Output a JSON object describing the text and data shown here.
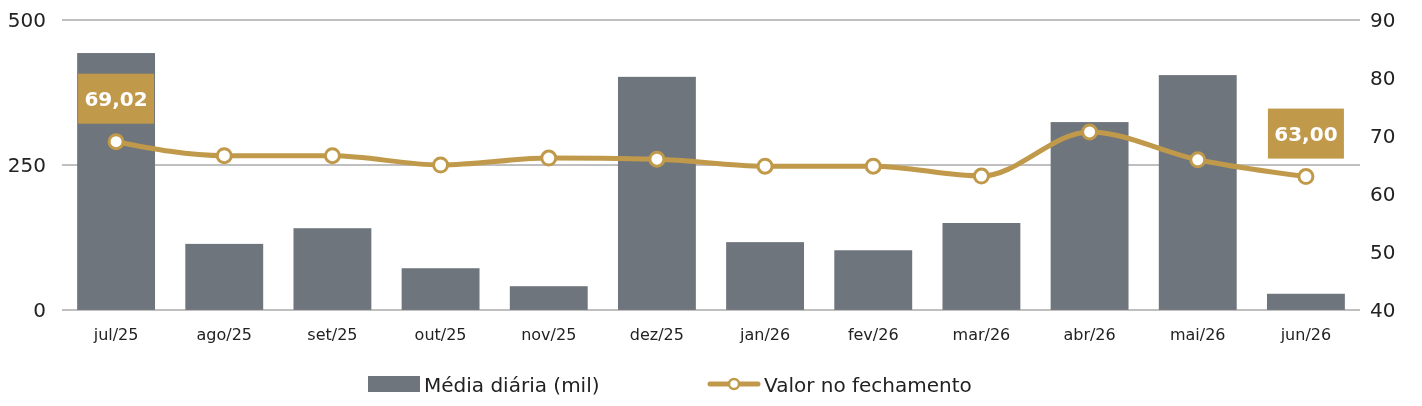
{
  "chart_data": {
    "type": "bar",
    "categories": [
      "jul/25",
      "ago/25",
      "set/25",
      "out/25",
      "nov/25",
      "dez/25",
      "jan/26",
      "fev/26",
      "mar/26",
      "abr/26",
      "mai/26",
      "jun/26"
    ],
    "series": [
      {
        "name": "Média diária (mil)",
        "color": "#6e757c",
        "values": [
          443,
          114,
          141,
          72,
          41,
          402,
          117,
          103,
          150,
          324,
          405,
          28
        ]
      },
      {
        "name": "Valor no fechamento",
        "type": "line",
        "axis": "y2",
        "color": "#c09a4a",
        "marker": "circle",
        "values": [
          69.02,
          66.6,
          66.6,
          65.0,
          66.2,
          66.0,
          64.8,
          64.8,
          63.1,
          70.7,
          65.9,
          63.0
        ],
        "value_labels": [
          "69,02",
          null,
          null,
          null,
          null,
          null,
          null,
          null,
          null,
          null,
          null,
          "63,00"
        ]
      }
    ],
    "ylim": [
      0,
      500
    ],
    "yticks": [
      0,
      250,
      500
    ],
    "y2lim": [
      40,
      90
    ],
    "y2ticks": [
      40,
      50,
      60,
      70,
      80,
      90
    ],
    "grid": "y",
    "legend": "bottom"
  }
}
